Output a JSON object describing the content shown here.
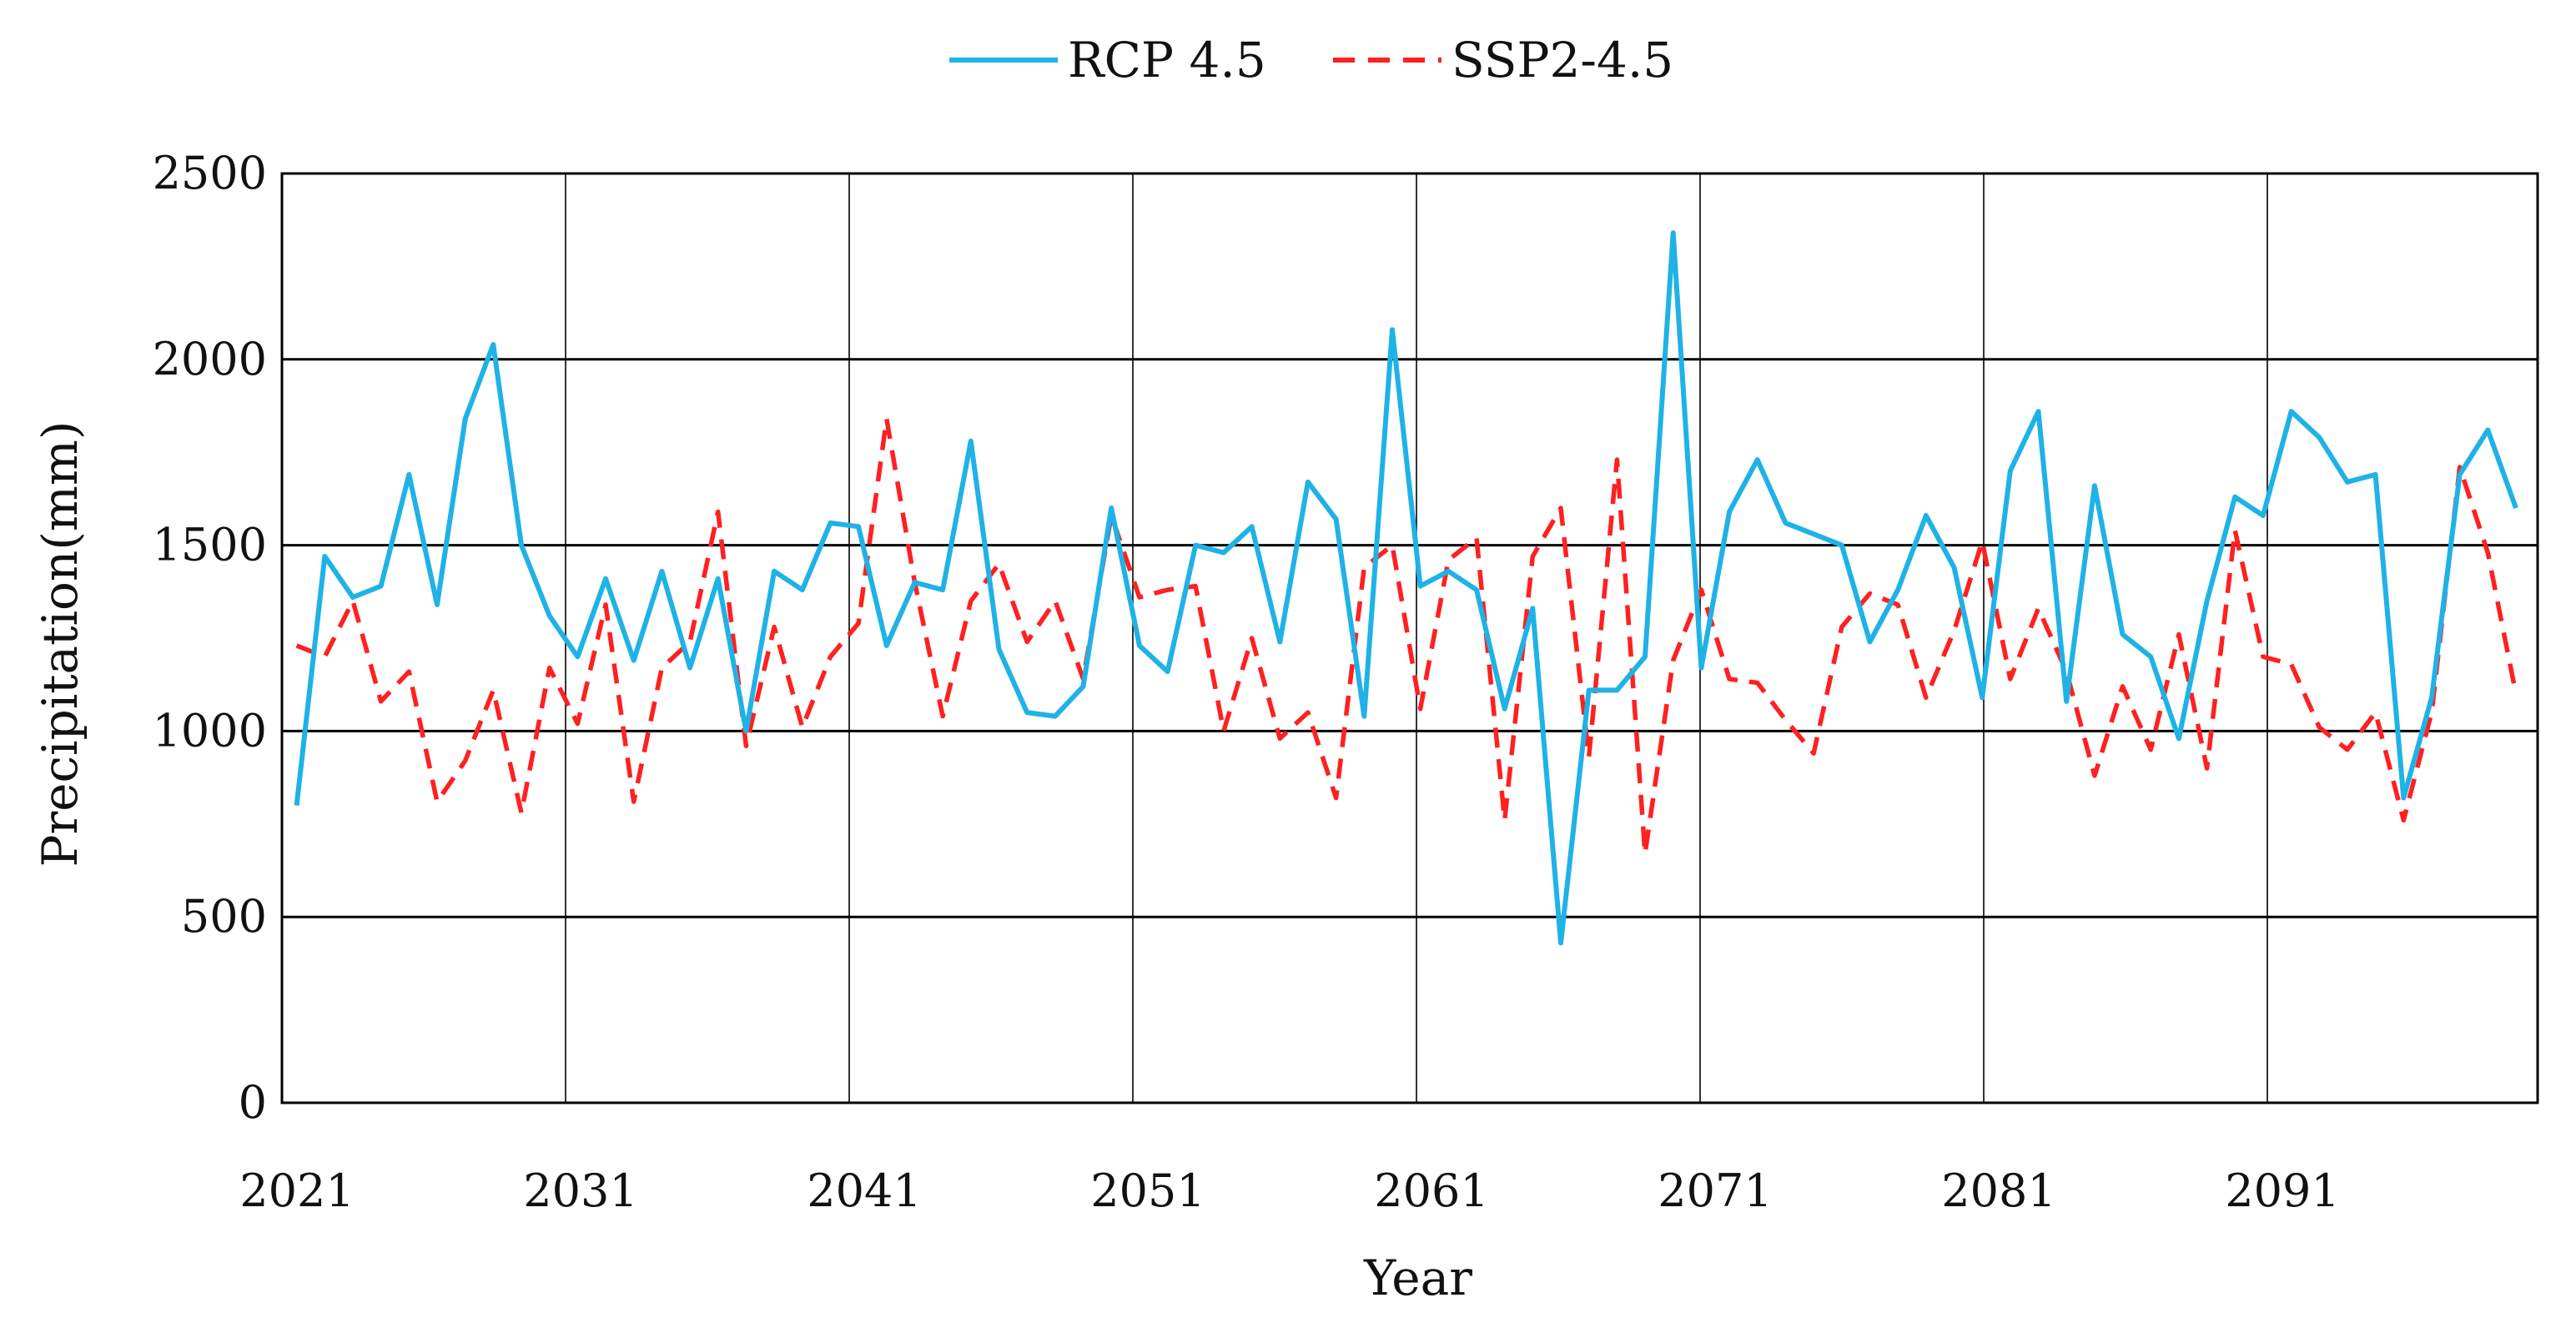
{
  "chart_data": {
    "type": "line",
    "title": "",
    "xlabel": "Year",
    "ylabel": "Precipitation(mm)",
    "ylim": [
      0,
      2500
    ],
    "yticks": [
      0,
      500,
      1000,
      1500,
      2000,
      2500
    ],
    "xlim": [
      2021,
      2100
    ],
    "xtick_labels": [
      "2021",
      "2031",
      "2041",
      "2051",
      "2061",
      "2071",
      "2081",
      "2091"
    ],
    "grid": "both",
    "legend_position": "top-center",
    "x": [
      2021,
      2022,
      2023,
      2024,
      2025,
      2026,
      2027,
      2028,
      2029,
      2030,
      2031,
      2032,
      2033,
      2034,
      2035,
      2036,
      2037,
      2038,
      2039,
      2040,
      2041,
      2042,
      2043,
      2044,
      2045,
      2046,
      2047,
      2048,
      2049,
      2050,
      2051,
      2052,
      2053,
      2054,
      2055,
      2056,
      2057,
      2058,
      2059,
      2060,
      2061,
      2062,
      2063,
      2064,
      2065,
      2066,
      2067,
      2068,
      2069,
      2070,
      2071,
      2072,
      2073,
      2074,
      2075,
      2076,
      2077,
      2078,
      2079,
      2080,
      2081,
      2082,
      2083,
      2084,
      2085,
      2086,
      2087,
      2088,
      2089,
      2090,
      2091,
      2092,
      2093,
      2094,
      2095,
      2096,
      2097,
      2098,
      2099,
      2100
    ],
    "series": [
      {
        "name": "RCP 4.5",
        "color": "#1fb2e6",
        "style": "solid",
        "values": [
          800,
          1470,
          1360,
          1390,
          1690,
          1340,
          1840,
          2040,
          1500,
          1310,
          1200,
          1410,
          1190,
          1430,
          1170,
          1410,
          1000,
          1430,
          1380,
          1560,
          1550,
          1230,
          1400,
          1380,
          1780,
          1220,
          1050,
          1040,
          1120,
          1600,
          1230,
          1160,
          1500,
          1480,
          1550,
          1240,
          1670,
          1570,
          1040,
          2080,
          1390,
          1430,
          1380,
          1060,
          1330,
          430,
          1110,
          1110,
          1200,
          2340,
          1170,
          1590,
          1730,
          1560,
          1530,
          1500,
          1240,
          1380,
          1580,
          1440,
          1090,
          1700,
          1860,
          1080,
          1660,
          1260,
          1200,
          980,
          1350,
          1630,
          1580,
          1860,
          1790,
          1670,
          1690,
          820,
          1090,
          1690,
          1810,
          1600
        ]
      },
      {
        "name": "SSP2-4.5",
        "color": "#ff2020",
        "style": "dashed",
        "values": [
          1230,
          1200,
          1350,
          1080,
          1160,
          810,
          920,
          1110,
          780,
          1170,
          1020,
          1340,
          810,
          1170,
          1240,
          1590,
          960,
          1280,
          1010,
          1200,
          1290,
          1840,
          1400,
          1040,
          1350,
          1450,
          1240,
          1350,
          1140,
          1580,
          1360,
          1380,
          1390,
          1000,
          1250,
          980,
          1050,
          820,
          1440,
          1500,
          1060,
          1460,
          1520,
          760,
          1470,
          1600,
          930,
          1730,
          670,
          1190,
          1380,
          1140,
          1130,
          1030,
          940,
          1280,
          1370,
          1340,
          1090,
          1270,
          1510,
          1140,
          1330,
          1160,
          880,
          1120,
          950,
          1260,
          900,
          1540,
          1200,
          1180,
          1010,
          950,
          1050,
          760,
          1050,
          1710,
          1480,
          1100
        ]
      }
    ]
  }
}
